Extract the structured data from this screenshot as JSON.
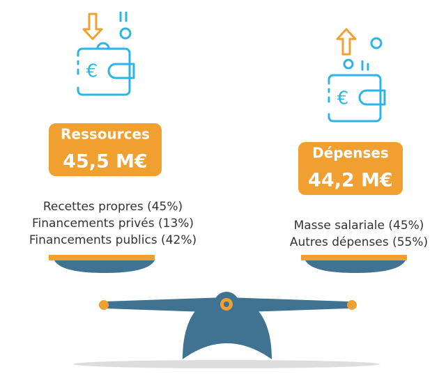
{
  "left": {
    "title": "Ressources",
    "amount": "45,5 M€",
    "items": [
      "Recettes propres (45%)",
      "Financements privés (13%)",
      "Financements publics (42%)"
    ]
  },
  "right": {
    "title": "Dépenses",
    "amount": "44,2 M€",
    "items": [
      "Masse salariale (45%)",
      "Autres dépenses (55%)"
    ]
  }
}
